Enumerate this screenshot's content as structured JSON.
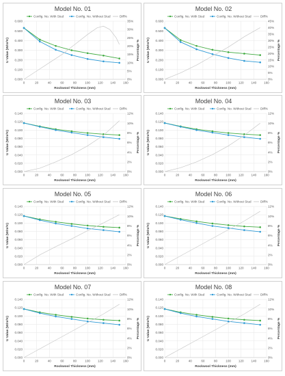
{
  "legend": {
    "with": "Config. No. With Stud",
    "without": "Config. No. Without Stud",
    "diff": "Diff%"
  },
  "colors": {
    "with": "#3faa3f",
    "without": "#2e9ad6",
    "diff": "#c8c8c8"
  },
  "chart_data": [
    {
      "type": "line",
      "title": "Model No. 01",
      "xlabel": "Rockwool Thickness (mm)",
      "ylabel": "U Value (W/m²K)",
      "y2label": "Percentage %",
      "x": [
        0,
        25,
        50,
        75,
        100,
        125,
        150
      ],
      "xticks": [
        0,
        20,
        40,
        60,
        80,
        100,
        120,
        140,
        160
      ],
      "xlim": [
        0,
        160
      ],
      "ylim": [
        0,
        0.6
      ],
      "yticks": [
        "0.000",
        "0.100",
        "0.200",
        "0.300",
        "0.400",
        "0.500",
        "0.600"
      ],
      "y2lim": [
        0,
        35
      ],
      "y2ticks": [
        "0%",
        "5%",
        "10%",
        "15%",
        "20%",
        "25%",
        "30%",
        "35%"
      ],
      "series": [
        {
          "name": "Config. No. With Stud",
          "axis": "left",
          "values": [
            0.53,
            0.41,
            0.345,
            0.3,
            0.27,
            0.245,
            0.215
          ]
        },
        {
          "name": "Config. No. Without Stud",
          "axis": "left",
          "values": [
            0.53,
            0.39,
            0.305,
            0.25,
            0.21,
            0.185,
            0.17
          ]
        },
        {
          "name": "Diff%",
          "axis": "right",
          "x": [
            0,
            20,
            40,
            60,
            80,
            100,
            115,
            125,
            135,
            145,
            150
          ],
          "values": [
            0,
            5,
            10,
            15,
            21,
            27,
            31,
            32,
            30,
            25,
            21
          ]
        }
      ]
    },
    {
      "type": "line",
      "title": "Model No. 02",
      "xlabel": "Rockwool Thickness (mm)",
      "ylabel": "U Value (W/m²K)",
      "y2label": "Percentage %",
      "x": [
        0,
        25,
        50,
        75,
        100,
        125,
        150
      ],
      "xticks": [
        0,
        20,
        40,
        60,
        80,
        100,
        120,
        140,
        160
      ],
      "xlim": [
        0,
        160
      ],
      "ylim": [
        0,
        0.6
      ],
      "yticks": [
        "0.000",
        "0.100",
        "0.200",
        "0.300",
        "0.400",
        "0.500",
        "0.600"
      ],
      "y2lim": [
        0,
        45
      ],
      "y2ticks": [
        "0%",
        "5%",
        "10%",
        "15%",
        "20%",
        "25%",
        "30%",
        "35%",
        "40%",
        "45%"
      ],
      "series": [
        {
          "name": "Config. No. With Stud",
          "axis": "left",
          "values": [
            0.53,
            0.405,
            0.345,
            0.305,
            0.28,
            0.265,
            0.25
          ]
        },
        {
          "name": "Config. No. Without Stud",
          "axis": "left",
          "values": [
            0.53,
            0.385,
            0.31,
            0.26,
            0.22,
            0.19,
            0.175
          ]
        },
        {
          "name": "Diff%",
          "axis": "right",
          "x": [
            0,
            25,
            50,
            75,
            100,
            125,
            150
          ],
          "values": [
            0,
            5,
            11,
            18,
            25,
            33,
            40
          ]
        }
      ]
    },
    {
      "type": "line",
      "title": "Model No. 03",
      "xlabel": "Rockwool Thickness (mm)",
      "ylabel": "U Value (W/m²K)",
      "y2label": "Percentage %",
      "x": [
        0,
        25,
        50,
        75,
        100,
        125,
        150
      ],
      "xticks": [
        0,
        20,
        40,
        60,
        80,
        100,
        120,
        140,
        160
      ],
      "xlim": [
        0,
        160
      ],
      "ylim": [
        0,
        0.14
      ],
      "yticks": [
        "0.000",
        "0.020",
        "0.040",
        "0.060",
        "0.080",
        "0.100",
        "0.120",
        "0.140"
      ],
      "y2lim": [
        0,
        12
      ],
      "y2ticks": [
        "0%",
        "2%",
        "4%",
        "6%",
        "8%",
        "10%",
        "12%"
      ],
      "series": [
        {
          "name": "Config. No. With Stud",
          "axis": "left",
          "values": [
            0.117,
            0.109,
            0.102,
            0.097,
            0.093,
            0.09,
            0.088
          ]
        },
        {
          "name": "Config. No. Without Stud",
          "axis": "left",
          "values": [
            0.117,
            0.108,
            0.1,
            0.094,
            0.088,
            0.083,
            0.079
          ]
        },
        {
          "name": "Diff%",
          "axis": "right",
          "x": [
            0,
            25,
            50,
            75,
            100,
            125,
            150
          ],
          "values": [
            0,
            0.7,
            2.0,
            3.5,
            5.3,
            7.5,
            10.5
          ]
        }
      ]
    },
    {
      "type": "line",
      "title": "Model No. 04",
      "xlabel": "Rockwool Thickness (mm)",
      "ylabel": "U Value (W/m²K)",
      "y2label": "Percentage %",
      "x": [
        0,
        25,
        50,
        75,
        100,
        125,
        150
      ],
      "xticks": [
        0,
        20,
        40,
        60,
        80,
        100,
        120,
        140,
        160
      ],
      "xlim": [
        0,
        160
      ],
      "ylim": [
        0,
        0.14
      ],
      "yticks": [
        "0.000",
        "0.020",
        "0.040",
        "0.060",
        "0.080",
        "0.100",
        "0.120",
        "0.140"
      ],
      "y2lim": [
        0,
        12
      ],
      "y2ticks": [
        "0%",
        "2%",
        "4%",
        "6%",
        "8%",
        "10%",
        "12%"
      ],
      "series": [
        {
          "name": "Config. No. With Stud",
          "axis": "left",
          "values": [
            0.117,
            0.109,
            0.102,
            0.097,
            0.093,
            0.09,
            0.088
          ]
        },
        {
          "name": "Config. No. Without Stud",
          "axis": "left",
          "values": [
            0.117,
            0.108,
            0.1,
            0.094,
            0.088,
            0.083,
            0.079
          ]
        },
        {
          "name": "Diff%",
          "axis": "right",
          "x": [
            0,
            25,
            50,
            75,
            100,
            125,
            150
          ],
          "values": [
            0,
            0.8,
            2.0,
            3.5,
            5.3,
            7.5,
            10.0
          ]
        }
      ]
    },
    {
      "type": "line",
      "title": "Model No. 05",
      "xlabel": "Rockwool Thickness (mm)",
      "ylabel": "U Value (W/m²K)",
      "y2label": "Percentage %",
      "x": [
        0,
        25,
        50,
        75,
        100,
        125,
        150
      ],
      "xticks": [
        0,
        20,
        40,
        60,
        80,
        100,
        120,
        140,
        160
      ],
      "xlim": [
        0,
        160
      ],
      "ylim": [
        0,
        0.14
      ],
      "yticks": [
        "0.000",
        "0.020",
        "0.040",
        "0.060",
        "0.080",
        "0.100",
        "0.120",
        "0.140"
      ],
      "y2lim": [
        0,
        12
      ],
      "y2ticks": [
        "0%",
        "2%",
        "4%",
        "6%",
        "8%",
        "10%",
        "12%"
      ],
      "series": [
        {
          "name": "Config. No. With Stud",
          "axis": "left",
          "values": [
            0.117,
            0.109,
            0.103,
            0.098,
            0.094,
            0.091,
            0.089
          ]
        },
        {
          "name": "Config. No. Without Stud",
          "axis": "left",
          "values": [
            0.117,
            0.107,
            0.099,
            0.093,
            0.087,
            0.083,
            0.079
          ]
        },
        {
          "name": "Diff%",
          "axis": "right",
          "x": [
            0,
            25,
            50,
            75,
            100,
            125,
            150
          ],
          "values": [
            0,
            2.0,
            3.7,
            5.3,
            7.0,
            8.6,
            10.3
          ]
        }
      ]
    },
    {
      "type": "line",
      "title": "Model No. 06",
      "xlabel": "Rockwool Thickness (mm)",
      "ylabel": "U Value (W/m²K)",
      "y2label": "Percentage %",
      "x": [
        0,
        25,
        50,
        75,
        100,
        125,
        150
      ],
      "xticks": [
        0,
        20,
        40,
        60,
        80,
        100,
        120,
        140,
        160
      ],
      "xlim": [
        0,
        160
      ],
      "ylim": [
        0,
        0.14
      ],
      "yticks": [
        "0.000",
        "0.020",
        "0.040",
        "0.060",
        "0.080",
        "0.100",
        "0.120",
        "0.140"
      ],
      "y2lim": [
        0,
        12
      ],
      "y2ticks": [
        "0%",
        "2%",
        "4%",
        "6%",
        "8%",
        "10%",
        "12%"
      ],
      "series": [
        {
          "name": "Config. No. With Stud",
          "axis": "left",
          "values": [
            0.117,
            0.11,
            0.104,
            0.099,
            0.095,
            0.092,
            0.09
          ]
        },
        {
          "name": "Config. No. Without Stud",
          "axis": "left",
          "values": [
            0.117,
            0.108,
            0.1,
            0.093,
            0.088,
            0.083,
            0.079
          ]
        },
        {
          "name": "Diff%",
          "axis": "right",
          "x": [
            0,
            25,
            50,
            75,
            100,
            125,
            150
          ],
          "values": [
            0,
            1.8,
            3.6,
            5.4,
            7.2,
            9.0,
            11.0
          ]
        }
      ]
    },
    {
      "type": "line",
      "title": "Model No. 07",
      "xlabel": "Rockwool Thickness (mm)",
      "ylabel": "U Value (W/m²K)",
      "y2label": "Percentage %",
      "x": [
        0,
        25,
        50,
        75,
        100,
        125,
        150
      ],
      "xticks": [
        0,
        20,
        40,
        60,
        80,
        100,
        120,
        140,
        160
      ],
      "xlim": [
        0,
        160
      ],
      "ylim": [
        0,
        0.14
      ],
      "yticks": [
        "0.000",
        "0.020",
        "0.040",
        "0.060",
        "0.080",
        "0.100",
        "0.120",
        "0.140"
      ],
      "y2lim": [
        0,
        12
      ],
      "y2ticks": [
        "0%",
        "2%",
        "4%",
        "6%",
        "8%",
        "10%",
        "12%"
      ],
      "series": [
        {
          "name": "Config. No. With Stud",
          "axis": "left",
          "values": [
            0.117,
            0.109,
            0.103,
            0.098,
            0.094,
            0.091,
            0.089
          ]
        },
        {
          "name": "Config. No. Without Stud",
          "axis": "left",
          "values": [
            0.117,
            0.107,
            0.099,
            0.093,
            0.087,
            0.083,
            0.079
          ]
        },
        {
          "name": "Diff%",
          "axis": "right",
          "x": [
            0,
            25,
            50,
            75,
            100,
            125,
            150
          ],
          "values": [
            0,
            1.8,
            3.6,
            5.4,
            7.2,
            9.0,
            11.0
          ]
        }
      ]
    },
    {
      "type": "line",
      "title": "Model No. 08",
      "xlabel": "Rockwool Thickness (mm)",
      "ylabel": "U Value (W/m²K)",
      "y2label": "Percentage %",
      "x": [
        0,
        25,
        50,
        75,
        100,
        125,
        150
      ],
      "xticks": [
        0,
        20,
        40,
        60,
        80,
        100,
        120,
        140,
        160
      ],
      "xlim": [
        0,
        160
      ],
      "ylim": [
        0,
        0.14
      ],
      "yticks": [
        "0.000",
        "0.020",
        "0.040",
        "0.060",
        "0.080",
        "0.100",
        "0.120",
        "0.140"
      ],
      "y2lim": [
        0,
        12
      ],
      "y2ticks": [
        "0%",
        "2%",
        "4%",
        "6%",
        "8%",
        "10%",
        "12%"
      ],
      "series": [
        {
          "name": "Config. No. With Stud",
          "axis": "left",
          "values": [
            0.117,
            0.109,
            0.103,
            0.098,
            0.094,
            0.091,
            0.089
          ]
        },
        {
          "name": "Config. No. Without Stud",
          "axis": "left",
          "values": [
            0.117,
            0.107,
            0.099,
            0.093,
            0.087,
            0.083,
            0.079
          ]
        },
        {
          "name": "Diff%",
          "axis": "right",
          "x": [
            0,
            25,
            50,
            75,
            100,
            125,
            150
          ],
          "values": [
            0,
            1.8,
            3.6,
            5.4,
            7.2,
            9.0,
            11.0
          ]
        }
      ]
    }
  ]
}
